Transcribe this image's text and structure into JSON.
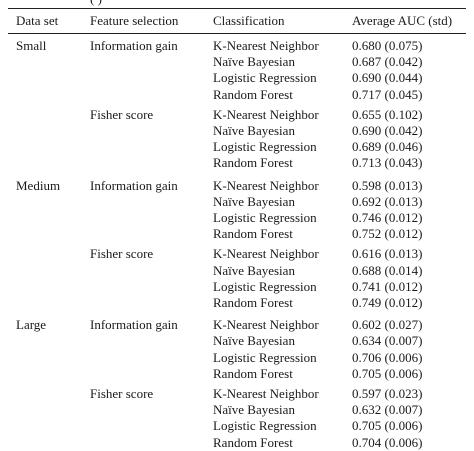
{
  "caption_fragment": "(                              )",
  "headers": {
    "dataset": "Data set",
    "feature_selection": "Feature selection",
    "classification": "Classification",
    "auc": "Average AUC (std)"
  },
  "groups": [
    {
      "dataset": "Small",
      "subgroups": [
        {
          "feature_selection": "Information gain",
          "rows": [
            {
              "classification": "K-Nearest Neighbor",
              "auc": "0.680 (0.075)"
            },
            {
              "classification": "Naïve Bayesian",
              "auc": "0.687 (0.042)"
            },
            {
              "classification": "Logistic Regression",
              "auc": "0.690 (0.044)"
            },
            {
              "classification": "Random Forest",
              "auc": "0.717 (0.045)"
            }
          ]
        },
        {
          "feature_selection": "Fisher score",
          "rows": [
            {
              "classification": "K-Nearest Neighbor",
              "auc": "0.655 (0.102)"
            },
            {
              "classification": "Naïve Bayesian",
              "auc": "0.690 (0.042)"
            },
            {
              "classification": "Logistic Regression",
              "auc": "0.689 (0.046)"
            },
            {
              "classification": "Random Forest",
              "auc": "0.713 (0.043)"
            }
          ]
        }
      ]
    },
    {
      "dataset": "Medium",
      "subgroups": [
        {
          "feature_selection": "Information gain",
          "rows": [
            {
              "classification": "K-Nearest Neighbor",
              "auc": "0.598 (0.013)"
            },
            {
              "classification": "Naïve Bayesian",
              "auc": "0.692 (0.013)"
            },
            {
              "classification": "Logistic Regression",
              "auc": "0.746 (0.012)"
            },
            {
              "classification": "Random Forest",
              "auc": "0.752 (0.012)"
            }
          ]
        },
        {
          "feature_selection": "Fisher score",
          "rows": [
            {
              "classification": "K-Nearest Neighbor",
              "auc": "0.616 (0.013)"
            },
            {
              "classification": "Naïve Bayesian",
              "auc": "0.688 (0.014)"
            },
            {
              "classification": "Logistic Regression",
              "auc": "0.741 (0.012)"
            },
            {
              "classification": "Random Forest",
              "auc": "0.749 (0.012)"
            }
          ]
        }
      ]
    },
    {
      "dataset": "Large",
      "subgroups": [
        {
          "feature_selection": "Information gain",
          "rows": [
            {
              "classification": "K-Nearest Neighbor",
              "auc": "0.602 (0.027)"
            },
            {
              "classification": "Naïve Bayesian",
              "auc": "0.634 (0.007)"
            },
            {
              "classification": "Logistic Regression",
              "auc": "0.706 (0.006)"
            },
            {
              "classification": "Random Forest",
              "auc": "0.705 (0.006)"
            }
          ]
        },
        {
          "feature_selection": "Fisher score",
          "rows": [
            {
              "classification": "K-Nearest Neighbor",
              "auc": "0.597 (0.023)"
            },
            {
              "classification": "Naïve Bayesian",
              "auc": "0.632 (0.007)"
            },
            {
              "classification": "Logistic Regression",
              "auc": "0.705 (0.006)"
            },
            {
              "classification": "Random Forest",
              "auc": "0.704 (0.006)"
            }
          ]
        }
      ]
    }
  ]
}
